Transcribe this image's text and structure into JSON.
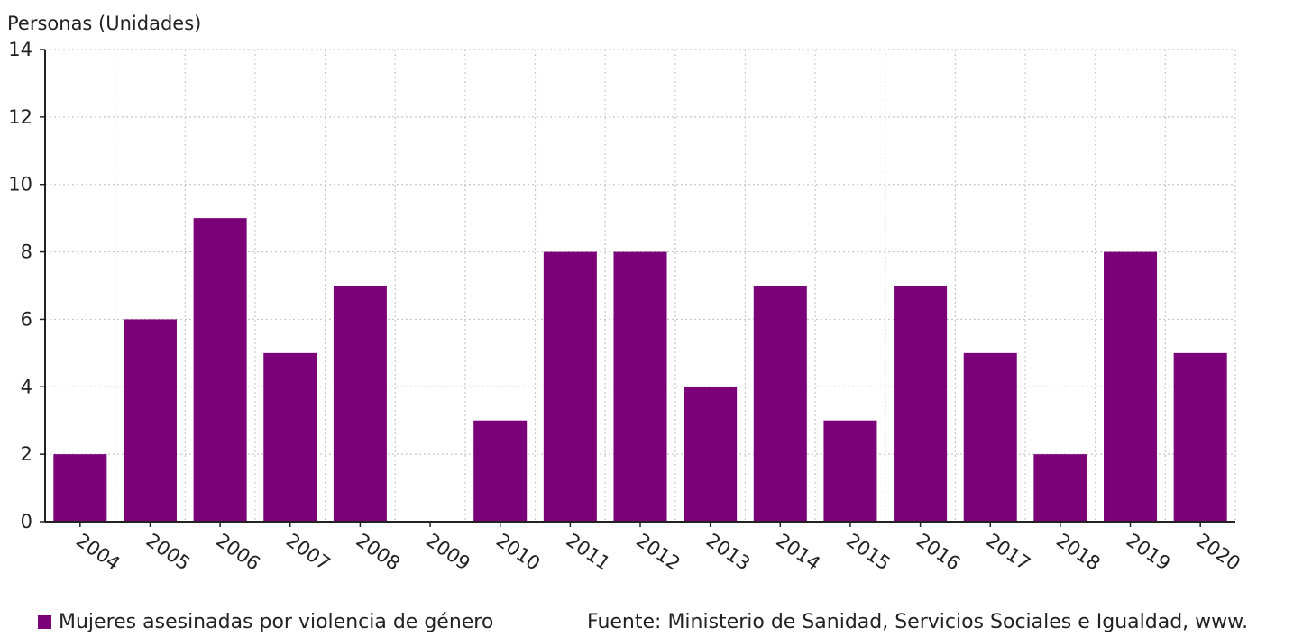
{
  "chart_data": {
    "type": "bar",
    "ylabel": "Personas (Unidades)",
    "xlabel": "",
    "categories": [
      "2004",
      "2005",
      "2006",
      "2007",
      "2008",
      "2009",
      "2010",
      "2011",
      "2012",
      "2013",
      "2014",
      "2015",
      "2016",
      "2017",
      "2018",
      "2019",
      "2020"
    ],
    "series": [
      {
        "name": "Mujeres asesinadas por violencia de género",
        "values": [
          2,
          6,
          9,
          5,
          7,
          0,
          3,
          8,
          8,
          4,
          7,
          3,
          7,
          5,
          2,
          8,
          5
        ]
      }
    ],
    "ylim": [
      0,
      14
    ],
    "yticks": [
      "0",
      "2",
      "4",
      "6",
      "8",
      "10",
      "12",
      "14"
    ],
    "grid": true,
    "legend_position": "bottom-left",
    "source": "Fuente: Ministerio de Sanidad, Servicios Sociales e Igualdad, www.",
    "colors": {
      "bar": "#7a0177",
      "grid": "#c8c8c8",
      "axis": "#222222"
    }
  }
}
